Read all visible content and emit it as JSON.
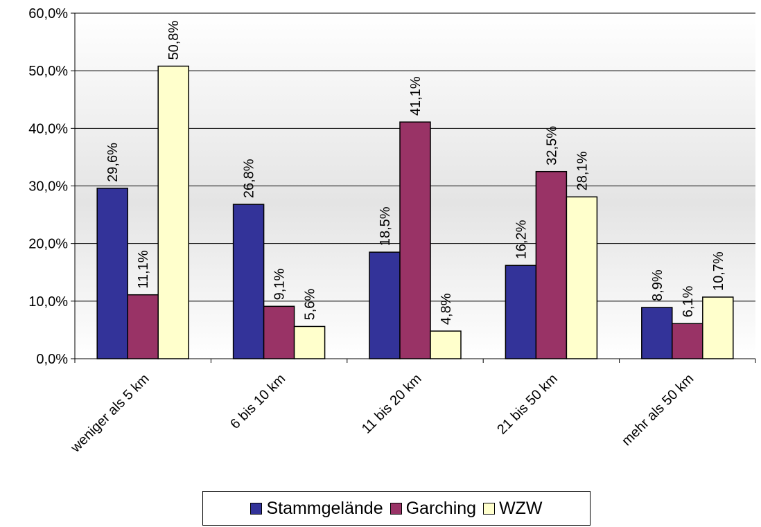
{
  "chart_data": {
    "type": "bar",
    "categories": [
      "weniger als 5 km",
      "6 bis 10 km",
      "11 bis 20 km",
      "21 bis 50 km",
      "mehr als 50 km"
    ],
    "series": [
      {
        "name": "Stammgelände",
        "color": "#333399",
        "values": [
          29.6,
          26.8,
          18.5,
          16.2,
          8.9
        ],
        "labels": [
          "29,6%",
          "26,8%",
          "18,5%",
          "16,2%",
          "8,9%"
        ]
      },
      {
        "name": "Garching",
        "color": "#993366",
        "values": [
          11.1,
          9.1,
          41.1,
          32.5,
          6.1
        ],
        "labels": [
          "11,1%",
          "9,1%",
          "41,1%",
          "32,5%",
          "6,1%"
        ]
      },
      {
        "name": "WZW",
        "color": "#FFFFCC",
        "values": [
          50.8,
          5.6,
          4.8,
          28.1,
          10.7
        ],
        "labels": [
          "50,8%",
          "5,6%",
          "4,8%",
          "28,1%",
          "10,7%"
        ]
      }
    ],
    "ylim": [
      0,
      60
    ],
    "yticks": [
      0,
      10,
      20,
      30,
      40,
      50,
      60
    ],
    "ytick_labels": [
      "0,0%",
      "10,0%",
      "20,0%",
      "30,0%",
      "40,0%",
      "50,0%",
      "60,0%"
    ],
    "title": "",
    "xlabel": "",
    "ylabel": "",
    "grid": true,
    "legend_position": "bottom"
  }
}
